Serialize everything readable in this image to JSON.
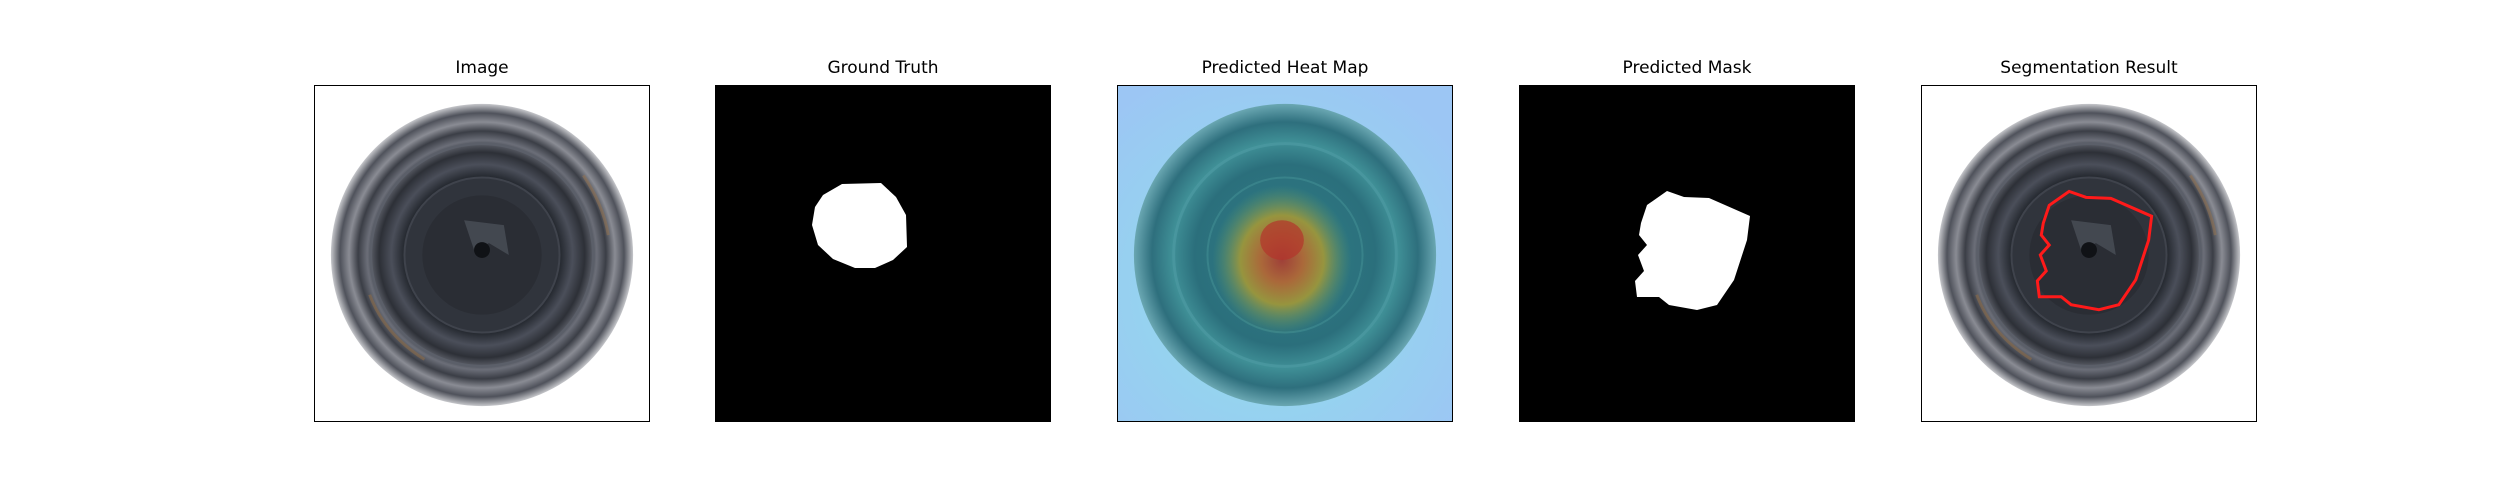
{
  "panels": [
    {
      "id": "image",
      "title": "Image"
    },
    {
      "id": "ground-truth",
      "title": "Ground Truth"
    },
    {
      "id": "heatmap",
      "title": "Predicted Heat Map"
    },
    {
      "id": "predicted-mask",
      "title": "Predicted Mask"
    },
    {
      "id": "segmentation",
      "title": "Segmentation Result"
    }
  ],
  "colors": {
    "background": "#ffffff",
    "mask_bg": "#000000",
    "mask_fg": "#ffffff",
    "contour": "#ff1a1a",
    "heat_low": "#9ecff5",
    "heat_high": "#b8302a"
  }
}
